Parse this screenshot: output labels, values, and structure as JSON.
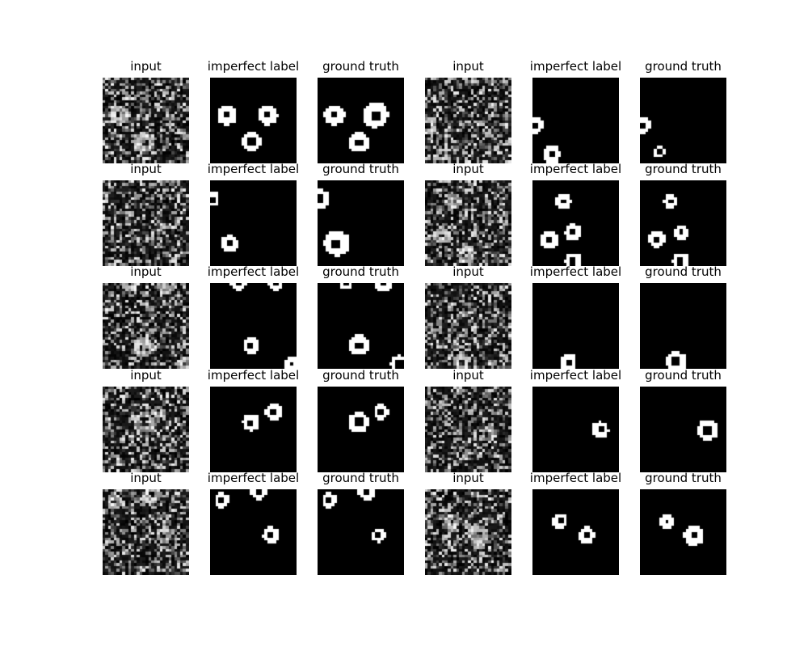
{
  "figure": {
    "rows": [
      {
        "panels": [
          {
            "title": "input",
            "kind": "noisy",
            "rings": [
              [
                0.2,
                0.44,
                0.24
              ],
              [
                0.48,
                0.76,
                0.24
              ]
            ]
          },
          {
            "title": "imperfect label",
            "kind": "label",
            "rings": [
              [
                0.2,
                0.44,
                0.23
              ],
              [
                0.67,
                0.44,
                0.23
              ],
              [
                0.48,
                0.75,
                0.23
              ]
            ]
          },
          {
            "title": "ground truth",
            "kind": "label",
            "rings": [
              [
                0.2,
                0.44,
                0.24
              ],
              [
                0.67,
                0.44,
                0.3
              ],
              [
                0.48,
                0.76,
                0.24
              ]
            ]
          },
          {
            "title": "input",
            "kind": "noisy",
            "rings": [
              [
                0.04,
                0.56,
                0.22
              ],
              [
                0.2,
                0.9,
                0.16
              ]
            ]
          },
          {
            "title": "imperfect label",
            "kind": "label",
            "rings": [
              [
                0.02,
                0.56,
                0.22
              ],
              [
                0.23,
                0.9,
                0.2
              ]
            ]
          },
          {
            "title": "ground truth",
            "kind": "label",
            "rings": [
              [
                0.02,
                0.56,
                0.22
              ],
              [
                0.23,
                0.87,
                0.14
              ]
            ]
          }
        ]
      },
      {
        "panels": [
          {
            "title": "input",
            "kind": "noisy",
            "rings": [
              [
                0.01,
                0.2,
                0.15
              ]
            ]
          },
          {
            "title": "imperfect label",
            "kind": "label",
            "rings": [
              [
                0.02,
                0.22,
                0.19
              ],
              [
                0.23,
                0.74,
                0.2
              ]
            ]
          },
          {
            "title": "ground truth",
            "kind": "label",
            "rings": [
              [
                0.02,
                0.22,
                0.24
              ],
              [
                0.23,
                0.74,
                0.3
              ]
            ]
          },
          {
            "title": "input",
            "kind": "noisy",
            "rings": [
              [
                0.34,
                0.25,
                0.19
              ],
              [
                0.2,
                0.65,
                0.19
              ],
              [
                0.48,
                0.88,
                0.19
              ]
            ]
          },
          {
            "title": "imperfect label",
            "kind": "label",
            "rings": [
              [
                0.36,
                0.25,
                0.19
              ],
              [
                0.2,
                0.7,
                0.2
              ],
              [
                0.48,
                0.61,
                0.2
              ],
              [
                0.48,
                0.95,
                0.2
              ]
            ]
          },
          {
            "title": "ground truth",
            "kind": "label",
            "rings": [
              [
                0.36,
                0.25,
                0.16
              ],
              [
                0.2,
                0.69,
                0.2
              ],
              [
                0.48,
                0.61,
                0.17
              ],
              [
                0.48,
                0.95,
                0.2
              ]
            ]
          }
        ]
      },
      {
        "panels": [
          {
            "title": "input",
            "kind": "noisy",
            "rings": [
              [
                0.33,
                0.0,
                0.2
              ],
              [
                0.76,
                0.0,
                0.24
              ],
              [
                0.48,
                0.75,
                0.24
              ],
              [
                0.95,
                0.95,
                0.18
              ]
            ]
          },
          {
            "title": "imperfect label",
            "kind": "label",
            "rings": [
              [
                0.33,
                0.0,
                0.18
              ],
              [
                0.76,
                0.0,
                0.18
              ],
              [
                0.48,
                0.73,
                0.19
              ],
              [
                0.95,
                0.95,
                0.18
              ]
            ]
          },
          {
            "title": "ground truth",
            "kind": "label",
            "rings": [
              [
                0.33,
                0.0,
                0.16
              ],
              [
                0.76,
                0.0,
                0.22
              ],
              [
                0.48,
                0.73,
                0.24
              ],
              [
                0.95,
                0.95,
                0.2
              ]
            ]
          },
          {
            "title": "input",
            "kind": "noisy",
            "rings": [
              [
                0.42,
                0.92,
                0.18
              ]
            ]
          },
          {
            "title": "imperfect label",
            "kind": "label",
            "rings": [
              [
                0.42,
                0.92,
                0.19
              ]
            ]
          },
          {
            "title": "ground truth",
            "kind": "label",
            "rings": [
              [
                0.42,
                0.92,
                0.24
              ]
            ]
          }
        ]
      },
      {
        "panels": [
          {
            "title": "input",
            "kind": "noisy",
            "rings": [
              [
                0.48,
                0.42,
                0.24
              ],
              [
                0.65,
                0.3,
                0.16
              ]
            ]
          },
          {
            "title": "imperfect label",
            "kind": "label",
            "rings": [
              [
                0.48,
                0.42,
                0.2
              ],
              [
                0.74,
                0.3,
                0.19
              ]
            ]
          },
          {
            "title": "ground truth",
            "kind": "label",
            "rings": [
              [
                0.48,
                0.42,
                0.24
              ],
              [
                0.74,
                0.3,
                0.18
              ]
            ]
          },
          {
            "title": "input",
            "kind": "noisy",
            "rings": [
              [
                0.74,
                0.56,
                0.18
              ]
            ]
          },
          {
            "title": "imperfect label",
            "kind": "label",
            "rings": [
              [
                0.79,
                0.51,
                0.19
              ]
            ]
          },
          {
            "title": "ground truth",
            "kind": "label",
            "rings": [
              [
                0.79,
                0.51,
                0.24
              ]
            ]
          }
        ]
      },
      {
        "panels": [
          {
            "title": "input",
            "kind": "noisy",
            "rings": [
              [
                0.14,
                0.15,
                0.18
              ],
              [
                0.57,
                0.07,
                0.2
              ],
              [
                0.71,
                0.54,
                0.16
              ]
            ]
          },
          {
            "title": "imperfect label",
            "kind": "label",
            "rings": [
              [
                0.14,
                0.13,
                0.18
              ],
              [
                0.57,
                0.02,
                0.2
              ],
              [
                0.71,
                0.54,
                0.19
              ]
            ]
          },
          {
            "title": "ground truth",
            "kind": "label",
            "rings": [
              [
                0.14,
                0.13,
                0.18
              ],
              [
                0.57,
                0.03,
                0.2
              ],
              [
                0.71,
                0.54,
                0.16
              ]
            ]
          },
          {
            "title": "input",
            "kind": "noisy",
            "rings": [
              [
                0.32,
                0.38,
                0.18
              ],
              [
                0.63,
                0.54,
                0.24
              ]
            ]
          },
          {
            "title": "imperfect label",
            "kind": "label",
            "rings": [
              [
                0.32,
                0.38,
                0.18
              ],
              [
                0.63,
                0.54,
                0.19
              ]
            ]
          },
          {
            "title": "ground truth",
            "kind": "label",
            "rings": [
              [
                0.32,
                0.38,
                0.16
              ],
              [
                0.63,
                0.54,
                0.24
              ]
            ]
          }
        ]
      }
    ]
  }
}
